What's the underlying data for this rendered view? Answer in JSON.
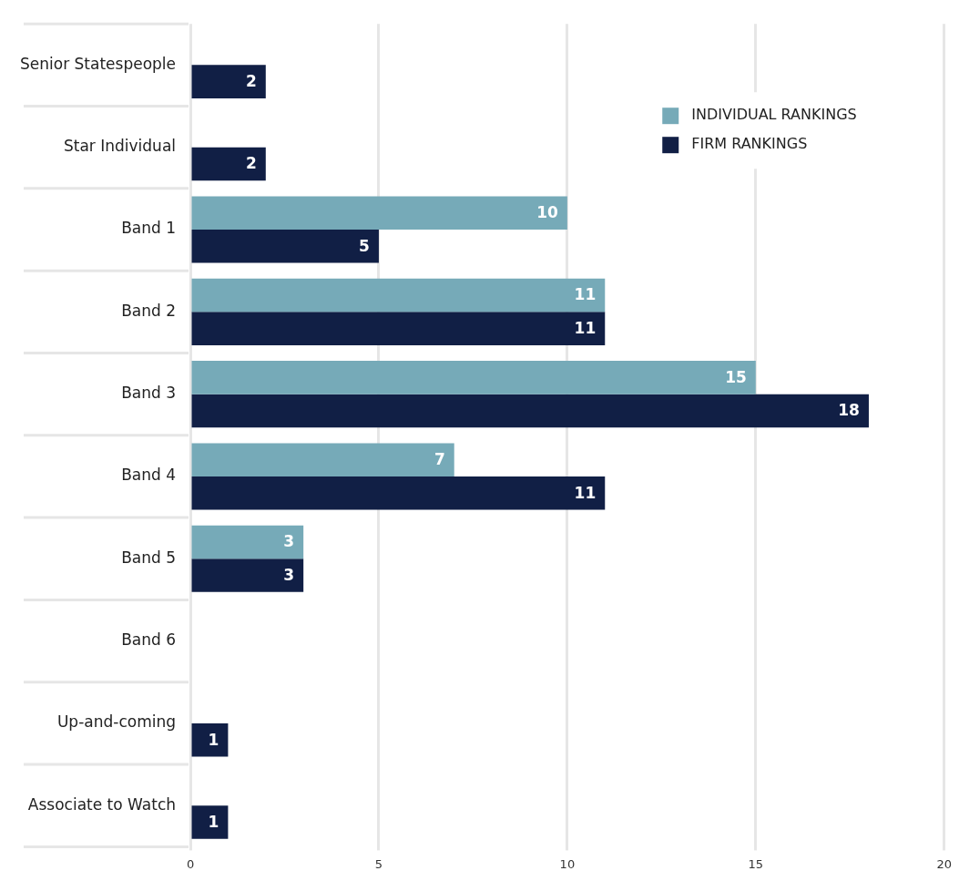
{
  "chart_data": {
    "type": "bar",
    "orientation": "horizontal",
    "categories": [
      "Senior Statespeople",
      "Star Individual",
      "Band 1",
      "Band 2",
      "Band 3",
      "Band 4",
      "Band 5",
      "Band 6",
      "Up-and-coming",
      "Associate to Watch"
    ],
    "series": [
      {
        "name": "INDIVIDUAL RANKINGS",
        "color": "#76aab8",
        "values": [
          null,
          null,
          10,
          11,
          15,
          7,
          3,
          null,
          null,
          null
        ]
      },
      {
        "name": "FIRM RANKINGS",
        "color": "#111f45",
        "values": [
          2,
          2,
          5,
          11,
          18,
          11,
          3,
          null,
          1,
          1
        ]
      }
    ],
    "xlim": [
      0,
      20
    ],
    "xticks": [
      0,
      5,
      10,
      15,
      20
    ],
    "grid": "x",
    "legend": "top right",
    "data_labels": true
  }
}
